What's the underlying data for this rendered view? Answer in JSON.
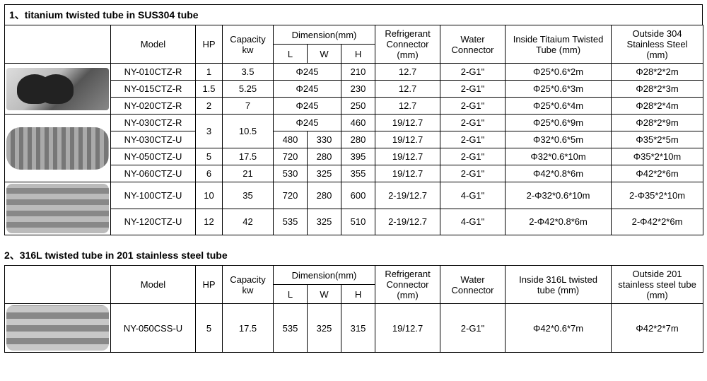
{
  "section1": {
    "title": "1、titanium twisted  tube in SUS304 tube",
    "headers": {
      "model": "Model",
      "hp": "HP",
      "capacity": "Capacity\nkw",
      "dimension": "Dimension(mm)",
      "L": "L",
      "W": "W",
      "H": "H",
      "refrigerant": "Refrigerant\nConnector\n(mm)",
      "water": "Water\nConnector",
      "inside": "Inside Titaium Twisted\nTube (mm)",
      "outside": "Outside 304\nStainless Steel\n(mm)"
    },
    "rows": [
      {
        "model": "NY-010CTZ-R",
        "hp": "1",
        "cap": "3.5",
        "L": "Φ245",
        "W": "",
        "H": "210",
        "ref": "12.7",
        "wat": "2-G1\"",
        "in": "Φ25*0.6*2m",
        "out": "Φ28*2*2m",
        "lspan": 2
      },
      {
        "model": "NY-015CTZ-R",
        "hp": "1.5",
        "cap": "5.25",
        "L": "Φ245",
        "W": "",
        "H": "230",
        "ref": "12.7",
        "wat": "2-G1\"",
        "in": "Φ25*0.6*3m",
        "out": "Φ28*2*3m",
        "lspan": 2
      },
      {
        "model": "NY-020CTZ-R",
        "hp": "2",
        "cap": "7",
        "L": "Φ245",
        "W": "",
        "H": "250",
        "ref": "12.7",
        "wat": "2-G1\"",
        "in": "Φ25*0.6*4m",
        "out": "Φ28*2*4m",
        "lspan": 2
      },
      {
        "model": "NY-030CTZ-R",
        "hp": "3",
        "cap": "10.5",
        "L": "Φ245",
        "W": "",
        "H": "460",
        "ref": "19/12.7",
        "wat": "2-G1\"",
        "in": "Φ25*0.6*9m",
        "out": "Φ28*2*9m",
        "lspan": 2,
        "hpRowspan": 2,
        "capRowspan": 2
      },
      {
        "model": "NY-030CTZ-U",
        "L": "480",
        "W": "330",
        "H": "280",
        "ref": "19/12.7",
        "wat": "2-G1\"",
        "in": "Φ32*0.6*5m",
        "out": "Φ35*2*5m",
        "lspan": 1,
        "noHpCap": true
      },
      {
        "model": "NY-050CTZ-U",
        "hp": "5",
        "cap": "17.5",
        "L": "720",
        "W": "280",
        "H": "395",
        "ref": "19/12.7",
        "wat": "2-G1\"",
        "in": "Φ32*0.6*10m",
        "out": "Φ35*2*10m",
        "lspan": 1
      },
      {
        "model": "NY-060CTZ-U",
        "hp": "6",
        "cap": "21",
        "L": "530",
        "W": "325",
        "H": "355",
        "ref": "19/12.7",
        "wat": "2-G1\"",
        "in": "Φ42*0.8*6m",
        "out": "Φ42*2*6m",
        "lspan": 1
      },
      {
        "model": "NY-100CTZ-U",
        "hp": "10",
        "cap": "35",
        "L": "720",
        "W": "280",
        "H": "600",
        "ref": "2-19/12.7",
        "wat": "4-G1\"",
        "in": "2-Φ32*0.6*10m",
        "out": "2-Φ35*2*10m",
        "lspan": 1
      },
      {
        "model": "NY-120CTZ-U",
        "hp": "12",
        "cap": "42",
        "L": "535",
        "W": "325",
        "H": "510",
        "ref": "2-19/12.7",
        "wat": "4-G1\"",
        "in": "2-Φ42*0.8*6m",
        "out": "2-Φ42*2*6m",
        "lspan": 1
      }
    ],
    "images": [
      {
        "class": "coil1",
        "rowspan": 3
      },
      {
        "class": "flex1",
        "rowspan": 4
      },
      {
        "class": "flex2",
        "rowspan": 2
      }
    ]
  },
  "section2": {
    "title": "2、316L twisted tube in 201 stainless steel tube",
    "headers": {
      "model": "Model",
      "hp": "HP",
      "capacity": "Capacity\nkw",
      "dimension": "Dimension(mm)",
      "L": "L",
      "W": "W",
      "H": "H",
      "refrigerant": "Refrigerant\nConnector\n(mm)",
      "water": "Water\nConnector",
      "inside": "Inside 316L twisted\ntube (mm)",
      "outside": "Outside 201\nstainless steel tube\n(mm)"
    },
    "rows": [
      {
        "model": "NY-050CSS-U",
        "hp": "5",
        "cap": "17.5",
        "L": "535",
        "W": "325",
        "H": "315",
        "ref": "19/12.7",
        "wat": "2-G1\"",
        "in": "Φ42*0.6*7m",
        "out": "Φ42*2*7m",
        "lspan": 1
      }
    ]
  }
}
